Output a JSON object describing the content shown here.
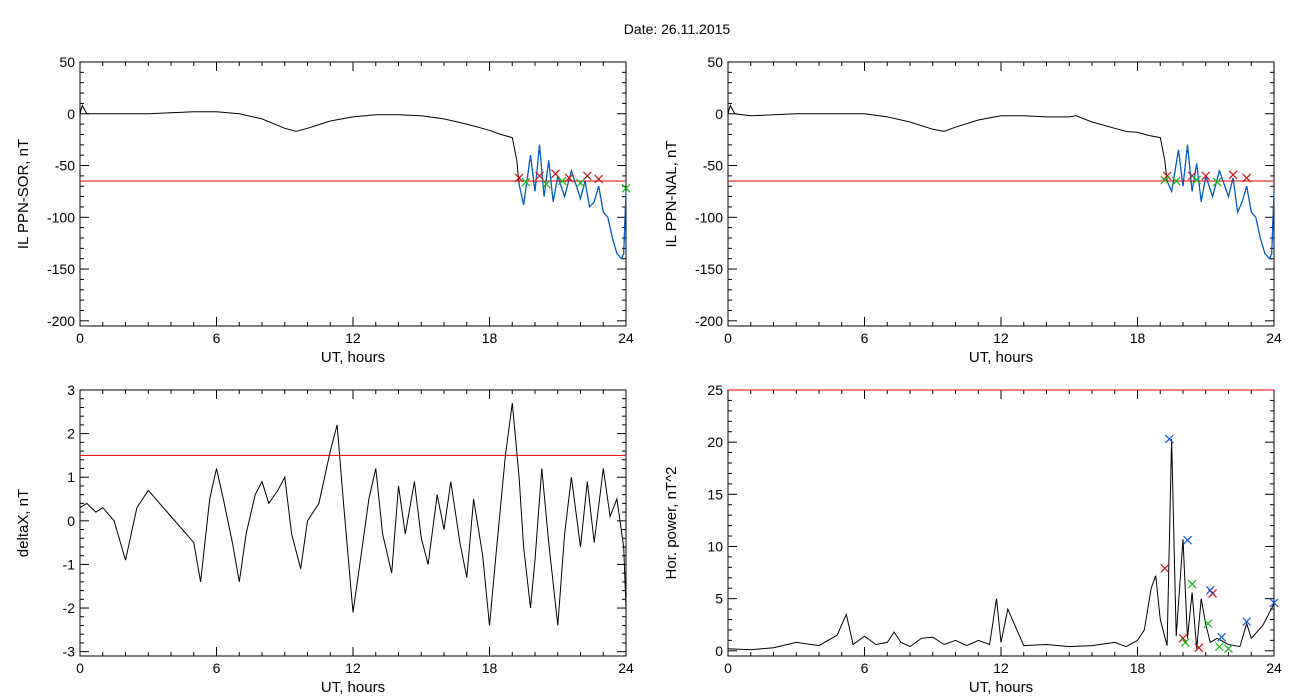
{
  "figure": {
    "title": "Date:  26.11.2015"
  },
  "colors": {
    "threshold": "#e00000",
    "trace": "#000000",
    "highlight": "#0060d0",
    "marker_red": "#cc1111",
    "marker_green": "#11bb11",
    "marker_blue": "#1155dd"
  },
  "chart_data": [
    {
      "id": "sor",
      "type": "line",
      "xlabel": "UT, hours",
      "ylabel": "IL PPN-SOR, nT",
      "xlim": [
        0,
        24
      ],
      "ylim": [
        -205,
        50
      ],
      "xticks": [
        0,
        6,
        12,
        18,
        24
      ],
      "xtick_labels": [
        "0",
        "6",
        "12",
        "18",
        "24"
      ],
      "yticks": [
        50,
        0,
        -50,
        -100,
        -150,
        -200
      ],
      "ytick_labels": [
        "50",
        "0",
        "-50",
        "-100",
        "-150",
        "-200"
      ],
      "threshold": -65,
      "series": [
        {
          "x": [
            0,
            0.1,
            0.3,
            1,
            2,
            3,
            4,
            5,
            6,
            7,
            8,
            9,
            9.5,
            10,
            11,
            12,
            13,
            14,
            15,
            16,
            17,
            17.5,
            18,
            18.5,
            19,
            19.2,
            19.3,
            19.5,
            19.8,
            20,
            20.2,
            20.4,
            20.6,
            20.8,
            21,
            21.3,
            21.6,
            22,
            22.2,
            22.4,
            22.6,
            22.8,
            23,
            23.2,
            23.4,
            23.6,
            23.8,
            23.9,
            24
          ],
          "y": [
            0,
            8,
            0,
            0,
            0,
            0,
            1,
            2,
            2,
            0,
            -5,
            -14,
            -17,
            -14,
            -7,
            -3,
            -1,
            -1,
            -2,
            -5,
            -10,
            -13,
            -16,
            -20,
            -23,
            -45,
            -68,
            -88,
            -40,
            -75,
            -30,
            -80,
            -45,
            -85,
            -60,
            -80,
            -55,
            -82,
            -65,
            -90,
            -85,
            -70,
            -95,
            -100,
            -120,
            -135,
            -140,
            -135,
            -75
          ]
        }
      ],
      "markers_red": {
        "x": [
          19.3,
          20.2,
          20.9,
          21.5,
          22.3,
          22.8
        ],
        "y": [
          -62,
          -60,
          -58,
          -62,
          -60,
          -63
        ]
      },
      "markers_green": {
        "x": [
          19.6,
          20.5,
          21.2,
          22.0,
          24.0
        ],
        "y": [
          -66,
          -68,
          -65,
          -67,
          -72
        ]
      }
    },
    {
      "id": "nal",
      "type": "line",
      "xlabel": "UT, hours",
      "ylabel": "IL PPN-NAL, nT",
      "xlim": [
        0,
        24
      ],
      "ylim": [
        -205,
        50
      ],
      "xticks": [
        0,
        6,
        12,
        18,
        24
      ],
      "xtick_labels": [
        "0",
        "6",
        "12",
        "18",
        "24"
      ],
      "yticks": [
        50,
        0,
        -50,
        -100,
        -150,
        -200
      ],
      "ytick_labels": [
        "50",
        "0",
        "-50",
        "-100",
        "-150",
        "-200"
      ],
      "threshold": -65,
      "series": [
        {
          "x": [
            0,
            0.1,
            0.3,
            1,
            2,
            3,
            4,
            5,
            6,
            7,
            8,
            9,
            9.5,
            10,
            11,
            12,
            13,
            14,
            15,
            15.3,
            16,
            17,
            17.5,
            18,
            18.5,
            19,
            19.2,
            19.3,
            19.5,
            19.8,
            20,
            20.2,
            20.4,
            20.6,
            20.8,
            21,
            21.3,
            21.6,
            22,
            22.2,
            22.4,
            22.6,
            22.8,
            23,
            23.2,
            23.4,
            23.6,
            23.8,
            23.9,
            24
          ],
          "y": [
            0,
            8,
            0,
            -2,
            -1,
            0,
            0,
            0,
            0,
            -3,
            -8,
            -15,
            -17,
            -13,
            -6,
            -2,
            -2,
            -3,
            -3,
            -2,
            -8,
            -14,
            -17,
            -18,
            -21,
            -23,
            -45,
            -65,
            -75,
            -35,
            -70,
            -30,
            -75,
            -48,
            -85,
            -60,
            -80,
            -55,
            -80,
            -62,
            -95,
            -85,
            -70,
            -95,
            -100,
            -120,
            -135,
            -140,
            -135,
            -75
          ]
        }
      ],
      "markers_red": {
        "x": [
          19.3,
          20.4,
          21.0,
          22.2,
          22.8
        ],
        "y": [
          -60,
          -60,
          -60,
          -59,
          -62
        ]
      },
      "markers_green": {
        "x": [
          19.2,
          19.7,
          20.6,
          21.5
        ],
        "y": [
          -64,
          -65,
          -64,
          -66
        ]
      }
    },
    {
      "id": "deltax",
      "type": "line",
      "xlabel": "UT, hours",
      "ylabel": "deltaX, nT",
      "xlim": [
        0,
        24
      ],
      "ylim": [
        -3.1,
        3.0
      ],
      "xticks": [
        0,
        6,
        12,
        18,
        24
      ],
      "xtick_labels": [
        "0",
        "6",
        "12",
        "18",
        "24"
      ],
      "yticks": [
        3,
        2,
        1,
        0,
        -1,
        -2,
        -3
      ],
      "ytick_labels": [
        "3",
        "2",
        "1",
        "0",
        "-1",
        "-2",
        "-3"
      ],
      "threshold": 1.5,
      "series": [
        {
          "x": [
            0,
            0.3,
            0.7,
            1,
            1.5,
            2,
            2.5,
            3,
            3.5,
            4,
            4.5,
            5,
            5.3,
            5.7,
            6,
            6.3,
            6.7,
            7,
            7.3,
            7.7,
            8,
            8.3,
            8.7,
            9,
            9.3,
            9.7,
            10,
            10.5,
            11,
            11.3,
            11.6,
            12,
            12.3,
            12.7,
            13,
            13.3,
            13.7,
            14,
            14.3,
            14.7,
            15,
            15.3,
            15.7,
            16,
            16.3,
            16.7,
            17,
            17.3,
            17.7,
            18,
            18.3,
            18.7,
            19,
            19.3,
            19.5,
            19.8,
            20,
            20.3,
            20.6,
            21,
            21.3,
            21.6,
            22,
            22.3,
            22.6,
            23,
            23.3,
            23.6,
            23.9,
            24
          ],
          "y": [
            0.3,
            0.4,
            0.2,
            0.3,
            0,
            -0.9,
            0.3,
            0.7,
            0.4,
            0.1,
            -0.2,
            -0.5,
            -1.4,
            0.5,
            1.2,
            0.5,
            -0.5,
            -1.4,
            -0.3,
            0.6,
            0.9,
            0.4,
            0.7,
            1.0,
            -0.3,
            -1.1,
            0,
            0.4,
            1.6,
            2.2,
            0.3,
            -2.1,
            -1.0,
            0.5,
            1.2,
            -0.3,
            -1.2,
            0.8,
            -0.3,
            0.9,
            -0.4,
            -1.0,
            0.6,
            -0.2,
            0.9,
            -0.5,
            -1.3,
            0.5,
            -0.8,
            -2.4,
            -0.7,
            1.5,
            2.7,
            1.0,
            -0.6,
            -2.0,
            -0.9,
            1.2,
            -0.5,
            -2.4,
            -0.3,
            1.0,
            -0.6,
            0.9,
            -0.5,
            1.2,
            0.1,
            0.5,
            -0.6,
            -2.0
          ]
        }
      ]
    },
    {
      "id": "power",
      "type": "line",
      "xlabel": "UT, hours",
      "ylabel": "Hor. power, nT^2",
      "xlim": [
        0,
        24
      ],
      "ylim": [
        -0.5,
        25
      ],
      "xticks": [
        0,
        6,
        12,
        18,
        24
      ],
      "xtick_labels": [
        "0",
        "6",
        "12",
        "18",
        "24"
      ],
      "yticks": [
        25,
        20,
        15,
        10,
        5,
        0
      ],
      "ytick_labels": [
        "25",
        "20",
        "15",
        "10",
        "5",
        "0"
      ],
      "threshold": 25,
      "series": [
        {
          "x": [
            0,
            1,
            2,
            3,
            4,
            4.8,
            5.2,
            5.5,
            6,
            6.5,
            7,
            7.3,
            7.6,
            8,
            8.5,
            9,
            9.5,
            10,
            10.5,
            11,
            11.5,
            11.8,
            12,
            12.3,
            12.7,
            13,
            14,
            15,
            16,
            17,
            17.5,
            18,
            18.3,
            18.6,
            18.8,
            19,
            19.3,
            19.5,
            19.7,
            20,
            20.2,
            20.4,
            20.6,
            20.8,
            21,
            21.2,
            21.5,
            22,
            22.5,
            22.8,
            23,
            23.5,
            24
          ],
          "y": [
            0.2,
            0.1,
            0.3,
            0.8,
            0.5,
            1.5,
            3.5,
            0.6,
            1.4,
            0.6,
            0.8,
            1.8,
            0.8,
            0.4,
            1.2,
            1.3,
            0.6,
            1.0,
            0.5,
            1.0,
            0.6,
            5.0,
            0.8,
            4.0,
            2.0,
            0.5,
            0.6,
            0.4,
            0.5,
            0.8,
            0.4,
            1.0,
            2.0,
            6.0,
            7.2,
            3.0,
            0.5,
            20.3,
            1.4,
            10.7,
            1.2,
            5.6,
            0.2,
            5.0,
            2.5,
            0.8,
            1.2,
            0.6,
            0.4,
            2.6,
            1.2,
            2.4,
            4.5
          ]
        }
      ],
      "markers_red": {
        "x": [
          19.2,
          20.0,
          20.7,
          21.3
        ],
        "y": [
          7.9,
          1.2,
          0.3,
          5.5
        ]
      },
      "markers_green": {
        "x": [
          20.1,
          20.4,
          21.1,
          21.6,
          22.0
        ],
        "y": [
          0.8,
          6.4,
          2.6,
          0.4,
          0.2
        ]
      },
      "markers_blue": {
        "x": [
          19.4,
          20.2,
          21.2,
          21.7,
          22.8,
          24.0
        ],
        "y": [
          20.3,
          10.6,
          5.8,
          1.3,
          2.8,
          4.6
        ]
      }
    }
  ]
}
